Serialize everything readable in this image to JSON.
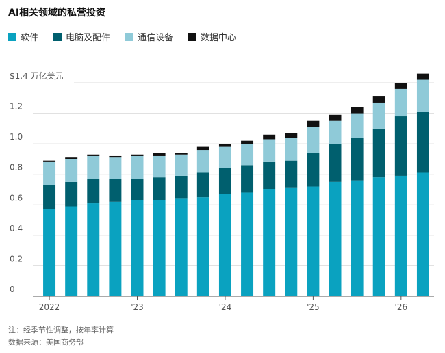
{
  "chart_data": {
    "type": "bar",
    "stacked": true,
    "title": "AI相关领域的私营投资",
    "y_unit_label": "$1.4 万亿美元",
    "ylim": [
      0,
      1.4
    ],
    "y_ticks": [
      "0",
      "0.2",
      "0.4",
      "0.6",
      "0.8",
      "1.0",
      "1.2"
    ],
    "x_tick_labels": [
      {
        "index": 0,
        "label": "2022"
      },
      {
        "index": 4,
        "label": "'23"
      },
      {
        "index": 8,
        "label": "'24"
      },
      {
        "index": 12,
        "label": "'25"
      },
      {
        "index": 16,
        "label": "'26"
      }
    ],
    "grid": true,
    "legend_position": "top-left",
    "categories": [
      "2022Q1",
      "2022Q2",
      "2022Q3",
      "2022Q4",
      "2023Q1",
      "2023Q2",
      "2023Q3",
      "2023Q4",
      "2024Q1",
      "2024Q2",
      "2024Q3",
      "2024Q4",
      "2025Q1",
      "2025Q2",
      "2025Q3",
      "2025Q4",
      "2026Q1",
      "2026Q2"
    ],
    "series": [
      {
        "name": "软件",
        "color": "#0aa2c0",
        "values": [
          0.57,
          0.59,
          0.61,
          0.62,
          0.63,
          0.63,
          0.64,
          0.65,
          0.67,
          0.68,
          0.7,
          0.71,
          0.72,
          0.75,
          0.76,
          0.78,
          0.79,
          0.81
        ]
      },
      {
        "name": "电脑及配件",
        "color": "#005f6e",
        "values": [
          0.16,
          0.16,
          0.16,
          0.15,
          0.14,
          0.15,
          0.15,
          0.16,
          0.17,
          0.18,
          0.18,
          0.18,
          0.22,
          0.25,
          0.28,
          0.32,
          0.39,
          0.4
        ]
      },
      {
        "name": "通信设备",
        "color": "#8fcad8",
        "values": [
          0.15,
          0.15,
          0.15,
          0.14,
          0.15,
          0.14,
          0.14,
          0.15,
          0.14,
          0.14,
          0.15,
          0.15,
          0.17,
          0.15,
          0.16,
          0.17,
          0.18,
          0.21
        ]
      },
      {
        "name": "数据中心",
        "color": "#111111",
        "values": [
          0.01,
          0.01,
          0.01,
          0.01,
          0.01,
          0.02,
          0.01,
          0.02,
          0.02,
          0.02,
          0.03,
          0.03,
          0.04,
          0.04,
          0.04,
          0.04,
          0.04,
          0.04
        ]
      }
    ]
  },
  "footer": {
    "note": "注：经季节性调整，按年率计算",
    "source": "数据来源：美国商务部"
  }
}
